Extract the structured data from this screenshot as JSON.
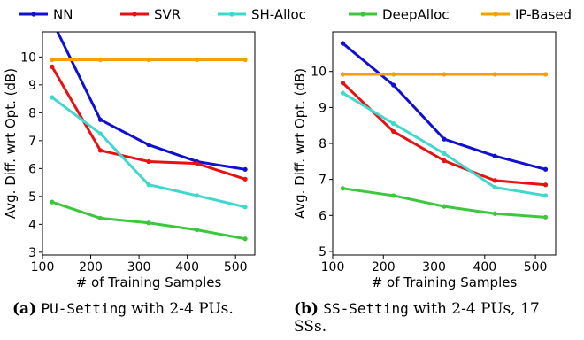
{
  "legend": [
    {
      "name": "NN",
      "color": "#1010d0"
    },
    {
      "name": "SVR",
      "color": "#e81010"
    },
    {
      "name": "SH-Alloc",
      "color": "#40d8cc"
    },
    {
      "name": "DeepAlloc",
      "color": "#3cc83c"
    },
    {
      "name": "IP-Based",
      "color": "#f5a000"
    }
  ],
  "chart_data": [
    {
      "type": "line",
      "xlabel": "# of Training Samples",
      "ylabel": "Avg. Diff. wrt Opt. (dB)",
      "xlim": [
        100,
        540
      ],
      "ylim": [
        2.9,
        10.9
      ],
      "xticks": [
        100,
        200,
        300,
        400,
        500
      ],
      "yticks": [
        3,
        4,
        5,
        6,
        7,
        8,
        9,
        10
      ],
      "x": [
        120,
        220,
        320,
        420,
        520
      ],
      "grid": false,
      "series": [
        {
          "name": "NN",
          "color": "#1010d0",
          "values": [
            11.3,
            7.75,
            6.85,
            6.25,
            5.97
          ]
        },
        {
          "name": "SVR",
          "color": "#e81010",
          "values": [
            9.65,
            6.65,
            6.25,
            6.18,
            5.62
          ]
        },
        {
          "name": "SH-Alloc",
          "color": "#40d8cc",
          "values": [
            8.55,
            7.25,
            5.42,
            5.03,
            4.62
          ]
        },
        {
          "name": "DeepAlloc",
          "color": "#3cc83c",
          "values": [
            4.8,
            4.22,
            4.05,
            3.8,
            3.48
          ]
        },
        {
          "name": "IP-Based",
          "color": "#f5a000",
          "values": [
            9.9,
            9.9,
            9.9,
            9.9,
            9.9
          ]
        }
      ]
    },
    {
      "type": "line",
      "xlabel": "# of Training Samples",
      "ylabel": "Avg. Diff. wrt Opt. (dB)",
      "xlim": [
        100,
        540
      ],
      "ylim": [
        4.9,
        11.1
      ],
      "xticks": [
        100,
        200,
        300,
        400,
        500
      ],
      "yticks": [
        5,
        6,
        7,
        8,
        9,
        10
      ],
      "x": [
        120,
        220,
        320,
        420,
        520
      ],
      "grid": false,
      "series": [
        {
          "name": "NN",
          "color": "#1010d0",
          "values": [
            10.78,
            9.62,
            8.12,
            7.65,
            7.28
          ]
        },
        {
          "name": "SVR",
          "color": "#e81010",
          "values": [
            9.68,
            8.33,
            7.52,
            6.97,
            6.85
          ]
        },
        {
          "name": "SH-Alloc",
          "color": "#40d8cc",
          "values": [
            9.4,
            8.55,
            7.72,
            6.78,
            6.55
          ]
        },
        {
          "name": "DeepAlloc",
          "color": "#3cc83c",
          "values": [
            6.75,
            6.55,
            6.25,
            6.05,
            5.95
          ]
        },
        {
          "name": "IP-Based",
          "color": "#f5a000",
          "values": [
            9.92,
            9.92,
            9.92,
            9.92,
            9.92
          ]
        }
      ]
    }
  ],
  "captions": [
    {
      "label": "(a)",
      "mono": "PU-Setting",
      "text": " with 2-4 PUs."
    },
    {
      "label": "(b)",
      "mono": "SS-Setting",
      "text": " with 2-4 PUs, 17 SSs."
    }
  ]
}
